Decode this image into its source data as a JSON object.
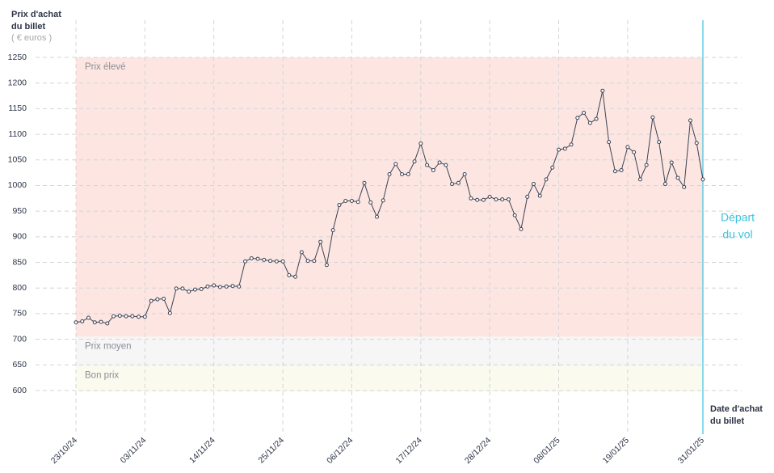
{
  "chart_data": {
    "type": "line",
    "y_label": [
      "Prix d'achat",
      "du billet"
    ],
    "y_unit": "( € euros )",
    "x_label": [
      "Date d'achat",
      "du billet"
    ],
    "annotation": [
      "Départ",
      "du vol"
    ],
    "bands": [
      {
        "name": "Prix élevé",
        "range": [
          705,
          1250
        ],
        "color": "#fde6e1"
      },
      {
        "name": "Prix moyen",
        "range": [
          648,
          705
        ],
        "color": "#f6f6f7"
      },
      {
        "name": "Bon prix",
        "range": [
          598,
          648
        ],
        "color": "#fafbee"
      }
    ],
    "x": [
      "23/10/24",
      "24/10/24",
      "25/10/24",
      "26/10/24",
      "27/10/24",
      "28/10/24",
      "29/10/24",
      "30/10/24",
      "31/10/24",
      "01/11/24",
      "02/11/24",
      "03/11/24",
      "04/11/24",
      "05/11/24",
      "06/11/24",
      "07/11/24",
      "08/11/24",
      "09/11/24",
      "10/11/24",
      "11/11/24",
      "12/11/24",
      "13/11/24",
      "14/11/24",
      "15/11/24",
      "16/11/24",
      "17/11/24",
      "18/11/24",
      "19/11/24",
      "20/11/24",
      "21/11/24",
      "22/11/24",
      "23/11/24",
      "24/11/24",
      "25/11/24",
      "26/11/24",
      "27/11/24",
      "28/11/24",
      "29/11/24",
      "30/11/24",
      "01/12/24",
      "02/12/24",
      "03/12/24",
      "04/12/24",
      "05/12/24",
      "06/12/24",
      "07/12/24",
      "08/12/24",
      "09/12/24",
      "10/12/24",
      "11/12/24",
      "12/12/24",
      "13/12/24",
      "14/12/24",
      "15/12/24",
      "16/12/24",
      "17/12/24",
      "18/12/24",
      "19/12/24",
      "20/12/24",
      "21/12/24",
      "22/12/24",
      "23/12/24",
      "24/12/24",
      "25/12/24",
      "26/12/24",
      "27/12/24",
      "28/12/24",
      "29/12/24",
      "30/12/24",
      "31/12/24",
      "01/01/25",
      "02/01/25",
      "03/01/25",
      "04/01/25",
      "05/01/25",
      "06/01/25",
      "07/01/25",
      "08/01/25",
      "09/01/25",
      "10/01/25",
      "11/01/25",
      "12/01/25",
      "13/01/25",
      "14/01/25",
      "15/01/25",
      "16/01/25",
      "17/01/25",
      "18/01/25",
      "19/01/25",
      "20/01/25",
      "21/01/25",
      "22/01/25",
      "23/01/25",
      "24/01/25",
      "25/01/25",
      "26/01/25",
      "27/01/25",
      "28/01/25",
      "29/01/25",
      "30/01/25",
      "31/01/25"
    ],
    "series": [
      {
        "name": "Prix",
        "color": "#3b4254",
        "values": [
          733,
          735,
          742,
          733,
          734,
          731,
          745,
          746,
          745,
          745,
          744,
          744,
          775,
          778,
          779,
          751,
          799,
          799,
          793,
          797,
          798,
          803,
          805,
          802,
          803,
          804,
          803,
          852,
          858,
          857,
          855,
          853,
          852,
          852,
          825,
          822,
          870,
          853,
          853,
          890,
          845,
          913,
          962,
          970,
          970,
          968,
          1005,
          967,
          939,
          971,
          1022,
          1042,
          1022,
          1022,
          1047,
          1082,
          1040,
          1030,
          1045,
          1040,
          1003,
          1005,
          1022,
          975,
          972,
          972,
          978,
          973,
          973,
          973,
          942,
          915,
          978,
          1003,
          980,
          1012,
          1035,
          1070,
          1072,
          1080,
          1132,
          1142,
          1122,
          1130,
          1185,
          1085,
          1028,
          1030,
          1075,
          1065,
          1012,
          1040,
          1133,
          1085,
          1003,
          1045,
          1015,
          997,
          1127,
          1083,
          1012
        ]
      }
    ],
    "xticks": [
      "23/10/24",
      "03/11/24",
      "14/11/24",
      "25/11/24",
      "06/12/24",
      "17/12/24",
      "28/12/24",
      "08/01/25",
      "19/01/25",
      "31/01/25"
    ],
    "ylim": [
      600,
      1250
    ],
    "yticks": [
      600,
      650,
      700,
      750,
      800,
      850,
      900,
      950,
      1000,
      1050,
      1100,
      1150,
      1200,
      1250
    ],
    "grid": true
  }
}
